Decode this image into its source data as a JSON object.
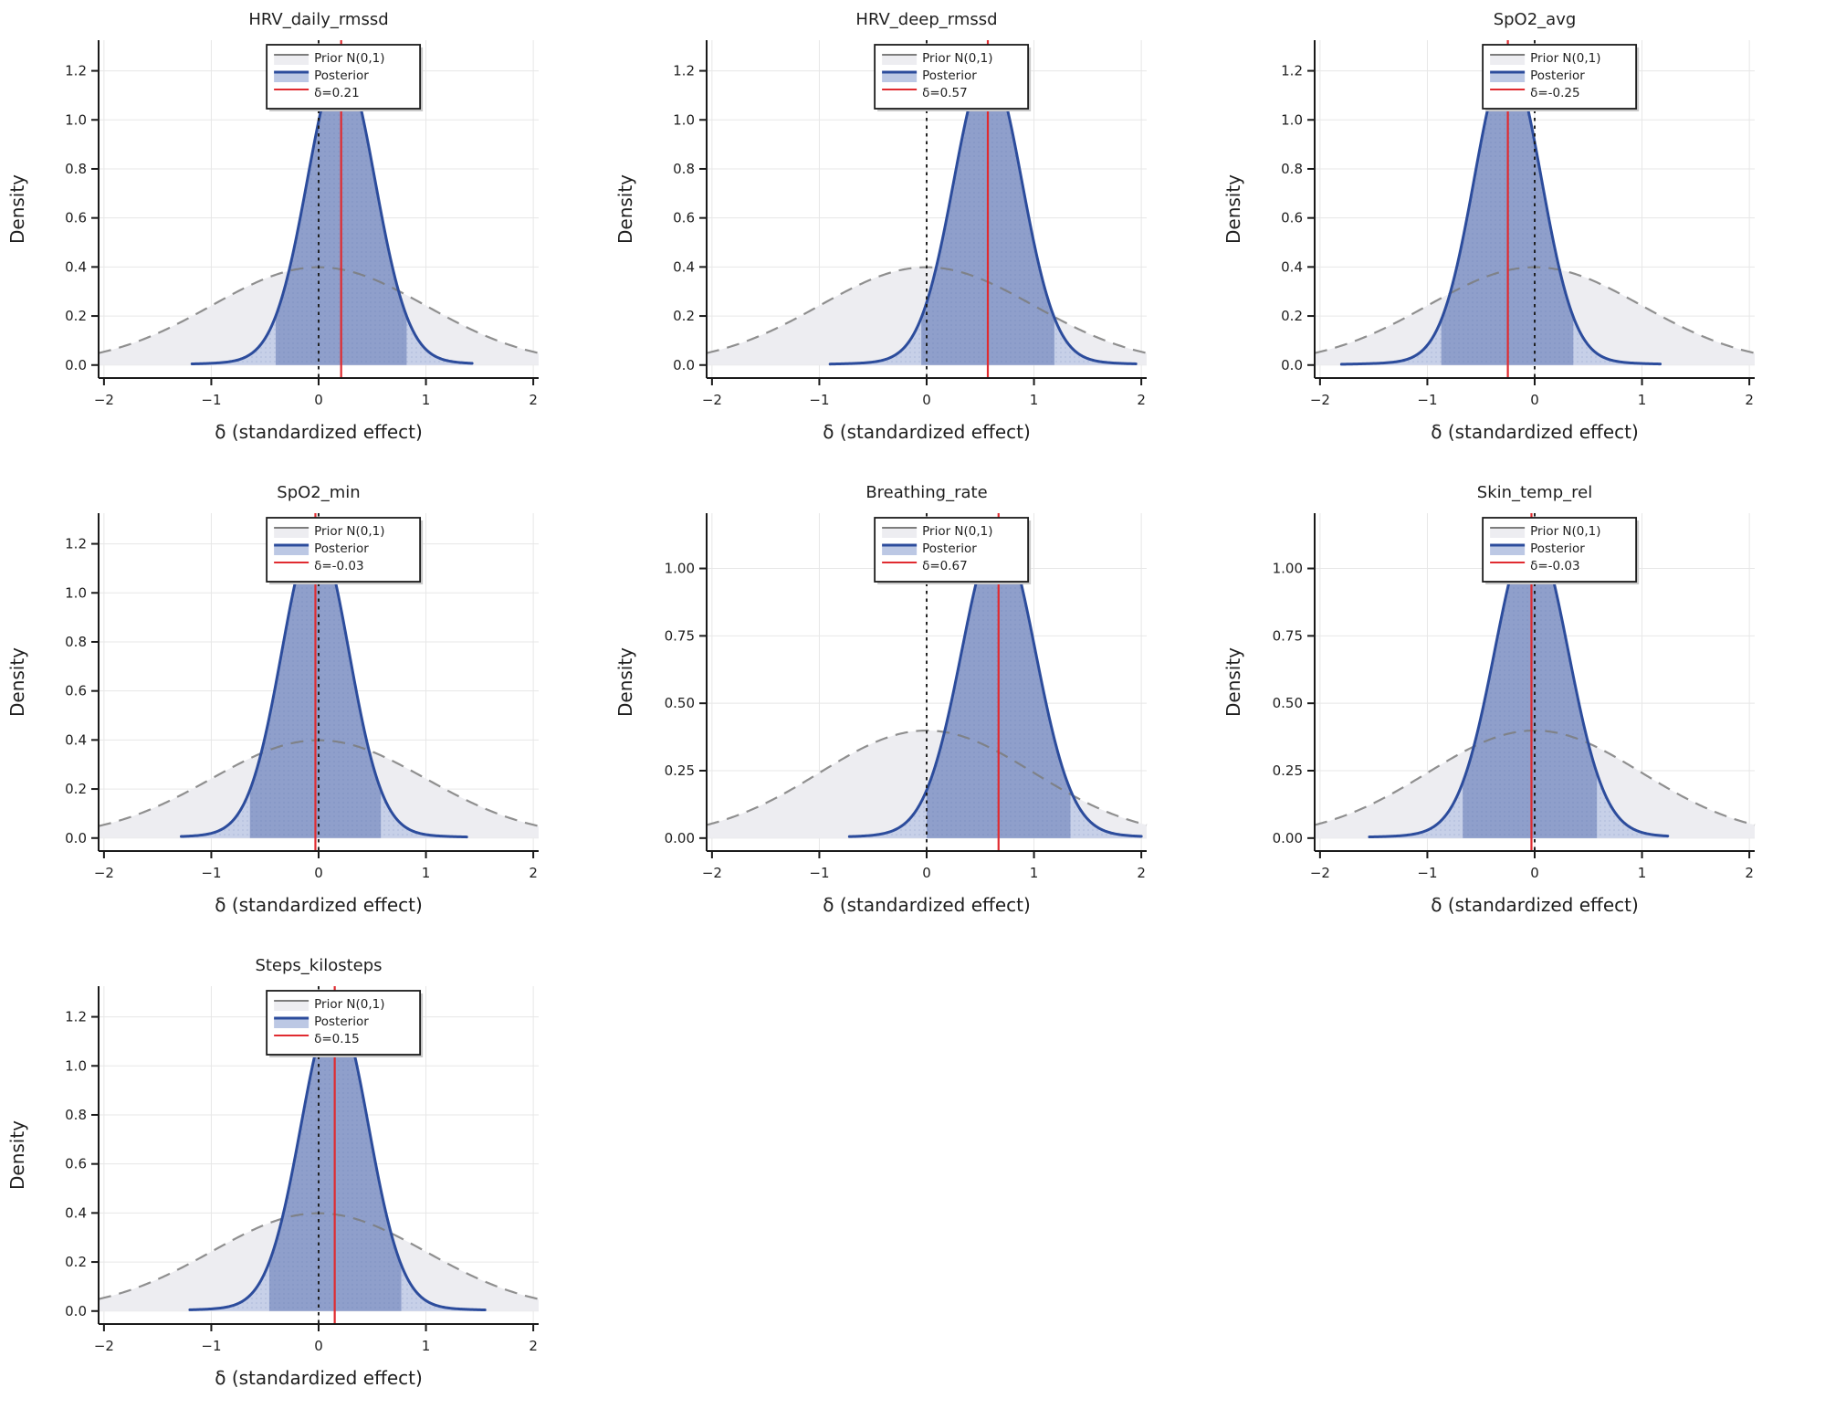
{
  "figure": {
    "xlabel": "δ (standardized effect)",
    "ylabel": "Density",
    "legend": {
      "prior_label": "Prior N(0,1)",
      "posterior_label": "Posterior"
    },
    "colors": {
      "posterior_line": "#2c4c9c",
      "posterior_fill": "#c7d0e8",
      "ci_fill": "#8f9fcb",
      "prior_fill": "#ededf1",
      "prior_line": "#7d7d7d",
      "median_line": "#e02b30",
      "zero_line": "#1a1a1a",
      "grid": "#e7e7e7",
      "axis": "#1a1a1a",
      "legend_border": "#1b1b1b",
      "legend_shadow": "#c9c9c9"
    }
  },
  "chart_data": [
    {
      "type": "area",
      "title": "HRV_daily_rmssd",
      "xlabel": "δ (standardized effect)",
      "ylabel": "Density",
      "xlim": [
        -2.05,
        2.05
      ],
      "x_ticks": [
        -2,
        -1,
        0,
        1,
        2
      ],
      "x_tick_labels": [
        "−2",
        "−1",
        "0",
        "1",
        "2"
      ],
      "ylim": [
        -0.053,
        1.325
      ],
      "y_ticks": [
        0,
        0.2,
        0.4,
        0.6,
        0.8,
        1.0,
        1.2
      ],
      "y_tick_labels": [
        "0.0",
        "0.2",
        "0.4",
        "0.6",
        "0.8",
        "1.0",
        "1.2"
      ],
      "grid": true,
      "legend_position": "upper center",
      "median_delta": 0.21,
      "legend_delta_label": "δ=0.21",
      "series": [
        {
          "name": "Prior N(0,1)",
          "dist": "normal",
          "mean": 0,
          "sd": 1,
          "peak": 0.4,
          "support": [
            -2.05,
            2.05
          ]
        },
        {
          "name": "Posterior",
          "dist": "kde",
          "mean": 0.21,
          "sd": 0.314,
          "peak": 1.27,
          "support": [
            -1.18,
            1.43
          ],
          "ci95": [
            -0.4,
            0.82
          ]
        }
      ]
    },
    {
      "type": "area",
      "title": "HRV_deep_rmssd",
      "xlabel": "δ (standardized effect)",
      "ylabel": "Density",
      "xlim": [
        -2.05,
        2.05
      ],
      "x_ticks": [
        -2,
        -1,
        0,
        1,
        2
      ],
      "x_tick_labels": [
        "−2",
        "−1",
        "0",
        "1",
        "2"
      ],
      "ylim": [
        -0.053,
        1.325
      ],
      "y_ticks": [
        0,
        0.2,
        0.4,
        0.6,
        0.8,
        1.0,
        1.2
      ],
      "y_tick_labels": [
        "0.0",
        "0.2",
        "0.4",
        "0.6",
        "0.8",
        "1.0",
        "1.2"
      ],
      "grid": true,
      "legend_position": "upper center",
      "median_delta": 0.57,
      "legend_delta_label": "δ=0.57",
      "series": [
        {
          "name": "Prior N(0,1)",
          "dist": "normal",
          "mean": 0,
          "sd": 1,
          "peak": 0.4,
          "support": [
            -2.05,
            2.05
          ]
        },
        {
          "name": "Posterior",
          "dist": "kde",
          "mean": 0.57,
          "sd": 0.317,
          "peak": 1.26,
          "support": [
            -0.9,
            1.95
          ],
          "ci95": [
            -0.05,
            1.19
          ]
        }
      ]
    },
    {
      "type": "area",
      "title": "SpO2_avg",
      "xlabel": "δ (standardized effect)",
      "ylabel": "Density",
      "xlim": [
        -2.05,
        2.05
      ],
      "x_ticks": [
        -2,
        -1,
        0,
        1,
        2
      ],
      "x_tick_labels": [
        "−2",
        "−1",
        "0",
        "1",
        "2"
      ],
      "ylim": [
        -0.053,
        1.325
      ],
      "y_ticks": [
        0,
        0.2,
        0.4,
        0.6,
        0.8,
        1.0,
        1.2
      ],
      "y_tick_labels": [
        "0.0",
        "0.2",
        "0.4",
        "0.6",
        "0.8",
        "1.0",
        "1.2"
      ],
      "grid": true,
      "legend_position": "upper center",
      "median_delta": -0.25,
      "legend_delta_label": "δ=-0.25",
      "series": [
        {
          "name": "Prior N(0,1)",
          "dist": "normal",
          "mean": 0,
          "sd": 1,
          "peak": 0.4,
          "support": [
            -2.05,
            2.05
          ]
        },
        {
          "name": "Posterior",
          "dist": "kde",
          "mean": -0.25,
          "sd": 0.312,
          "peak": 1.28,
          "support": [
            -1.8,
            1.17
          ],
          "ci95": [
            -0.87,
            0.36
          ]
        }
      ]
    },
    {
      "type": "area",
      "title": "SpO2_min",
      "xlabel": "δ (standardized effect)",
      "ylabel": "Density",
      "xlim": [
        -2.05,
        2.05
      ],
      "x_ticks": [
        -2,
        -1,
        0,
        1,
        2
      ],
      "x_tick_labels": [
        "−2",
        "−1",
        "0",
        "1",
        "2"
      ],
      "ylim": [
        -0.053,
        1.325
      ],
      "y_ticks": [
        0,
        0.2,
        0.4,
        0.6,
        0.8,
        1.0,
        1.2
      ],
      "y_tick_labels": [
        "0.0",
        "0.2",
        "0.4",
        "0.6",
        "0.8",
        "1.0",
        "1.2"
      ],
      "grid": true,
      "legend_position": "upper center",
      "median_delta": -0.03,
      "legend_delta_label": "δ=-0.03",
      "series": [
        {
          "name": "Prior N(0,1)",
          "dist": "normal",
          "mean": 0,
          "sd": 1,
          "peak": 0.4,
          "support": [
            -2.05,
            2.05
          ]
        },
        {
          "name": "Posterior",
          "dist": "kde",
          "mean": -0.03,
          "sd": 0.312,
          "peak": 1.28,
          "support": [
            -1.28,
            1.38
          ],
          "ci95": [
            -0.64,
            0.58
          ]
        }
      ]
    },
    {
      "type": "area",
      "title": "Breathing_rate",
      "xlabel": "δ (standardized effect)",
      "ylabel": "Density",
      "xlim": [
        -2.05,
        2.05
      ],
      "x_ticks": [
        -2,
        -1,
        0,
        1,
        2
      ],
      "x_tick_labels": [
        "−2",
        "−1",
        "0",
        "1",
        "2"
      ],
      "ylim": [
        -0.048,
        1.205
      ],
      "y_ticks": [
        0,
        0.25,
        0.5,
        0.75,
        1.0
      ],
      "y_tick_labels": [
        "0.00",
        "0.25",
        "0.50",
        "0.75",
        "1.00"
      ],
      "grid": true,
      "legend_position": "upper center",
      "median_delta": 0.67,
      "legend_delta_label": "δ=0.67",
      "series": [
        {
          "name": "Prior N(0,1)",
          "dist": "normal",
          "mean": 0,
          "sd": 1,
          "peak": 0.4,
          "support": [
            -2.05,
            2.05
          ]
        },
        {
          "name": "Posterior",
          "dist": "kde",
          "mean": 0.67,
          "sd": 0.342,
          "peak": 1.17,
          "support": [
            -0.72,
            2.0
          ],
          "ci95": [
            0.0,
            1.34
          ]
        }
      ]
    },
    {
      "type": "area",
      "title": "Skin_temp_rel",
      "xlabel": "δ (standardized effect)",
      "ylabel": "Density",
      "xlim": [
        -2.05,
        2.05
      ],
      "x_ticks": [
        -2,
        -1,
        0,
        1,
        2
      ],
      "x_tick_labels": [
        "−2",
        "−1",
        "0",
        "1",
        "2"
      ],
      "ylim": [
        -0.048,
        1.205
      ],
      "y_ticks": [
        0,
        0.25,
        0.5,
        0.75,
        1.0
      ],
      "y_tick_labels": [
        "0.00",
        "0.25",
        "0.50",
        "0.75",
        "1.00"
      ],
      "grid": true,
      "legend_position": "upper center",
      "median_delta": -0.03,
      "legend_delta_label": "δ=-0.03",
      "series": [
        {
          "name": "Prior N(0,1)",
          "dist": "normal",
          "mean": 0,
          "sd": 1,
          "peak": 0.4,
          "support": [
            -2.05,
            2.05
          ]
        },
        {
          "name": "Posterior",
          "dist": "kde",
          "mean": -0.03,
          "sd": 0.341,
          "peak": 1.17,
          "support": [
            -1.54,
            1.24
          ],
          "ci95": [
            -0.67,
            0.58
          ]
        }
      ]
    },
    {
      "type": "area",
      "title": "Steps_kilosteps",
      "xlabel": "δ (standardized effect)",
      "ylabel": "Density",
      "xlim": [
        -2.05,
        2.05
      ],
      "x_ticks": [
        -2,
        -1,
        0,
        1,
        2
      ],
      "x_tick_labels": [
        "−2",
        "−1",
        "0",
        "1",
        "2"
      ],
      "ylim": [
        -0.053,
        1.325
      ],
      "y_ticks": [
        0,
        0.2,
        0.4,
        0.6,
        0.8,
        1.0,
        1.2
      ],
      "y_tick_labels": [
        "0.0",
        "0.2",
        "0.4",
        "0.6",
        "0.8",
        "1.0",
        "1.2"
      ],
      "grid": true,
      "legend_position": "upper center",
      "median_delta": 0.15,
      "legend_delta_label": "δ=0.15",
      "series": [
        {
          "name": "Prior N(0,1)",
          "dist": "normal",
          "mean": 0,
          "sd": 1,
          "peak": 0.4,
          "support": [
            -2.05,
            2.05
          ]
        },
        {
          "name": "Posterior",
          "dist": "kde",
          "mean": 0.15,
          "sd": 0.314,
          "peak": 1.27,
          "support": [
            -1.2,
            1.55
          ],
          "ci95": [
            -0.46,
            0.77
          ]
        }
      ]
    }
  ]
}
